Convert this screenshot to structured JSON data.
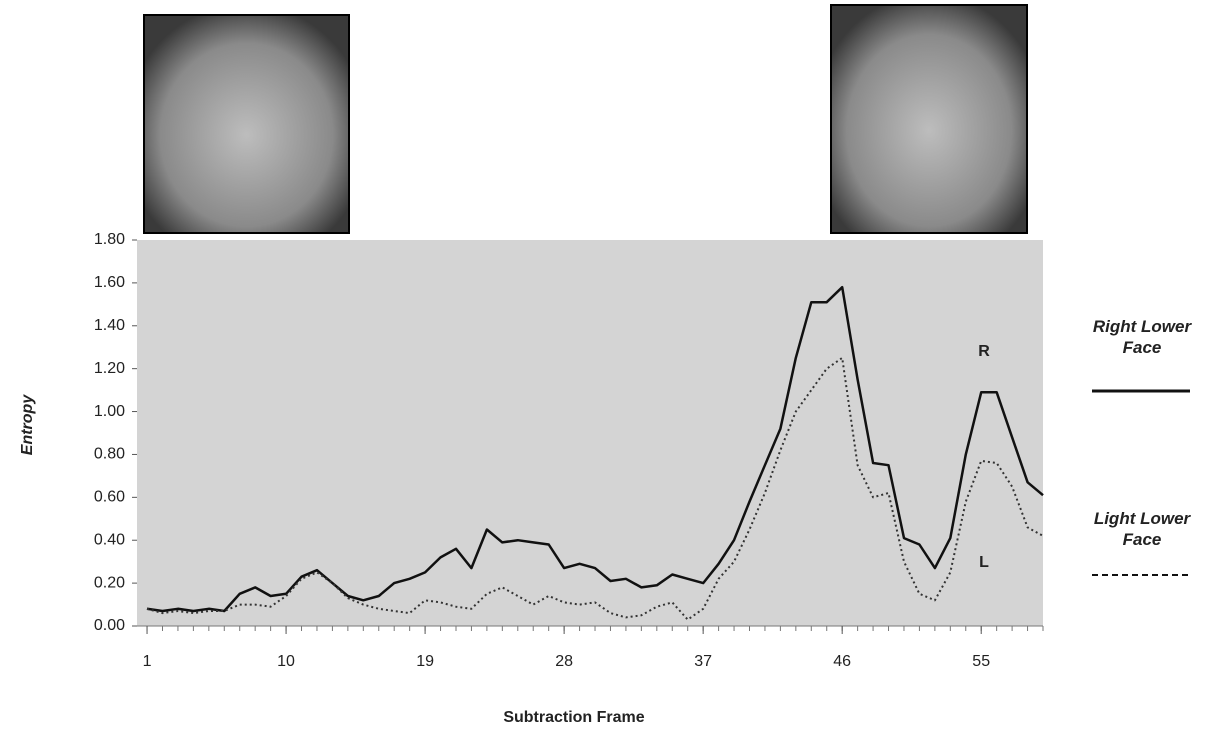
{
  "chart_data": {
    "type": "line",
    "x_label": "Subtraction Frame",
    "y_label": "Entropy",
    "annotations": [
      "R",
      "L"
    ],
    "x": [
      1,
      2,
      3,
      4,
      5,
      6,
      7,
      8,
      9,
      10,
      11,
      12,
      13,
      14,
      15,
      16,
      17,
      18,
      19,
      20,
      21,
      22,
      23,
      24,
      25,
      26,
      27,
      28,
      29,
      30,
      31,
      32,
      33,
      34,
      35,
      36,
      37,
      38,
      39,
      40,
      41,
      42,
      43,
      44,
      45,
      46,
      47,
      48,
      49,
      50,
      51,
      52,
      53,
      54,
      55,
      56,
      57,
      58,
      59
    ],
    "series": [
      {
        "name": "Right Lower Face",
        "color": "#111111",
        "style": "solid",
        "values": [
          0.08,
          0.07,
          0.08,
          0.07,
          0.08,
          0.07,
          0.15,
          0.18,
          0.14,
          0.15,
          0.23,
          0.26,
          0.2,
          0.14,
          0.12,
          0.14,
          0.2,
          0.22,
          0.25,
          0.32,
          0.36,
          0.27,
          0.45,
          0.39,
          0.4,
          0.39,
          0.38,
          0.27,
          0.29,
          0.27,
          0.21,
          0.22,
          0.18,
          0.19,
          0.24,
          0.22,
          0.2,
          0.29,
          0.4,
          0.58,
          0.75,
          0.92,
          1.25,
          1.51,
          1.51,
          1.58,
          1.15,
          0.76,
          0.75,
          0.41,
          0.38,
          0.27,
          0.41,
          0.8,
          1.09,
          1.09,
          0.88,
          0.67,
          0.61
        ]
      },
      {
        "name": "Light Lower Face",
        "color": "#333333",
        "style": "dotted",
        "values": [
          0.08,
          0.06,
          0.07,
          0.06,
          0.07,
          0.07,
          0.1,
          0.1,
          0.09,
          0.14,
          0.22,
          0.25,
          0.2,
          0.13,
          0.1,
          0.08,
          0.07,
          0.06,
          0.12,
          0.11,
          0.09,
          0.08,
          0.15,
          0.18,
          0.14,
          0.1,
          0.14,
          0.11,
          0.1,
          0.11,
          0.06,
          0.04,
          0.05,
          0.09,
          0.11,
          0.03,
          0.08,
          0.22,
          0.3,
          0.45,
          0.62,
          0.82,
          1.0,
          1.1,
          1.2,
          1.25,
          0.75,
          0.6,
          0.62,
          0.3,
          0.15,
          0.12,
          0.25,
          0.58,
          0.77,
          0.76,
          0.65,
          0.46,
          0.42
        ]
      }
    ],
    "xlim": [
      0.35,
      59.0
    ],
    "xticks": [
      1,
      10,
      19,
      28,
      37,
      46,
      55
    ],
    "ylim": [
      0,
      1.8
    ],
    "yticks": [
      {
        "value": 0,
        "label": "0.00"
      },
      {
        "value": 0.2,
        "label": "0.20"
      },
      {
        "value": 0.4,
        "label": "0.40"
      },
      {
        "value": 0.6,
        "label": "0.60"
      },
      {
        "value": 0.8,
        "label": "0.80"
      },
      {
        "value": 1.0,
        "label": "1.00"
      },
      {
        "value": 1.2,
        "label": "1.20"
      },
      {
        "value": 1.4,
        "label": "1.40"
      },
      {
        "value": 1.6,
        "label": "1.60"
      },
      {
        "value": 1.8,
        "label": "1.80"
      }
    ],
    "plot_background": "#d4d4d4"
  }
}
